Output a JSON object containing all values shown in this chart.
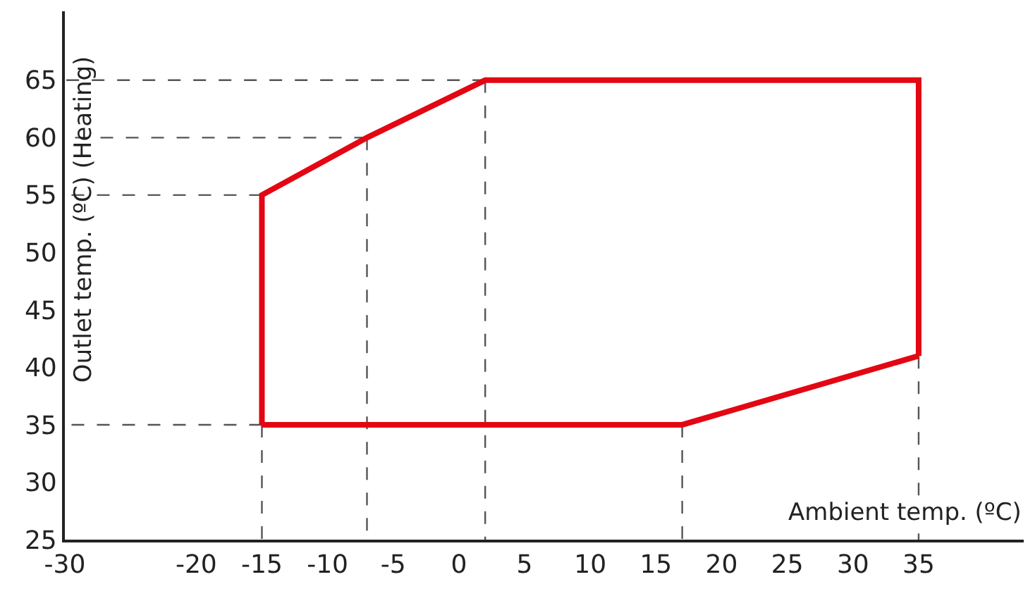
{
  "chart_data": {
    "type": "line",
    "xlabel": "Ambient temp. (ºC)",
    "ylabel": "Outlet temp. (ºC) (Heating)",
    "xlim": [
      -30,
      43
    ],
    "ylim": [
      25,
      71
    ],
    "xticks": [
      -30,
      -20,
      -15,
      -10,
      -5,
      0,
      5,
      10,
      15,
      20,
      25,
      30,
      35
    ],
    "yticks": [
      25,
      30,
      35,
      40,
      45,
      50,
      55,
      60,
      65
    ],
    "marker": "none",
    "series": [
      {
        "color": "#e30613",
        "line_style": "solid",
        "x": [
          -15,
          -15,
          -7,
          2,
          35,
          35
        ],
        "values": [
          35,
          55,
          60,
          65,
          65,
          41
        ]
      },
      {
        "color": "#e30613",
        "line_style": "solid",
        "x": [
          -15,
          17,
          35
        ],
        "values": [
          35,
          35,
          41
        ]
      },
      {
        "color": "#555555",
        "line_style": "dashed",
        "x": [
          2,
          -30
        ],
        "values": [
          65,
          65
        ]
      },
      {
        "color": "#555555",
        "line_style": "dashed",
        "x": [
          -7,
          -30
        ],
        "values": [
          60,
          60
        ]
      },
      {
        "color": "#555555",
        "line_style": "dashed",
        "x": [
          -15,
          -30
        ],
        "values": [
          55,
          55
        ]
      },
      {
        "color": "#555555",
        "line_style": "dashed",
        "x": [
          -15,
          -30
        ],
        "values": [
          35,
          35
        ]
      },
      {
        "color": "#555555",
        "line_style": "dashed",
        "x": [
          -15,
          -15
        ],
        "values": [
          35,
          25
        ]
      },
      {
        "color": "#555555",
        "line_style": "dashed",
        "x": [
          -7,
          -7
        ],
        "values": [
          60,
          25
        ]
      },
      {
        "color": "#555555",
        "line_style": "dashed",
        "x": [
          2,
          2
        ],
        "values": [
          65,
          25
        ]
      },
      {
        "color": "#555555",
        "line_style": "dashed",
        "x": [
          17,
          17
        ],
        "values": [
          35,
          25
        ]
      },
      {
        "color": "#555555",
        "line_style": "dashed",
        "x": [
          35,
          35
        ],
        "values": [
          41,
          25
        ]
      }
    ]
  }
}
